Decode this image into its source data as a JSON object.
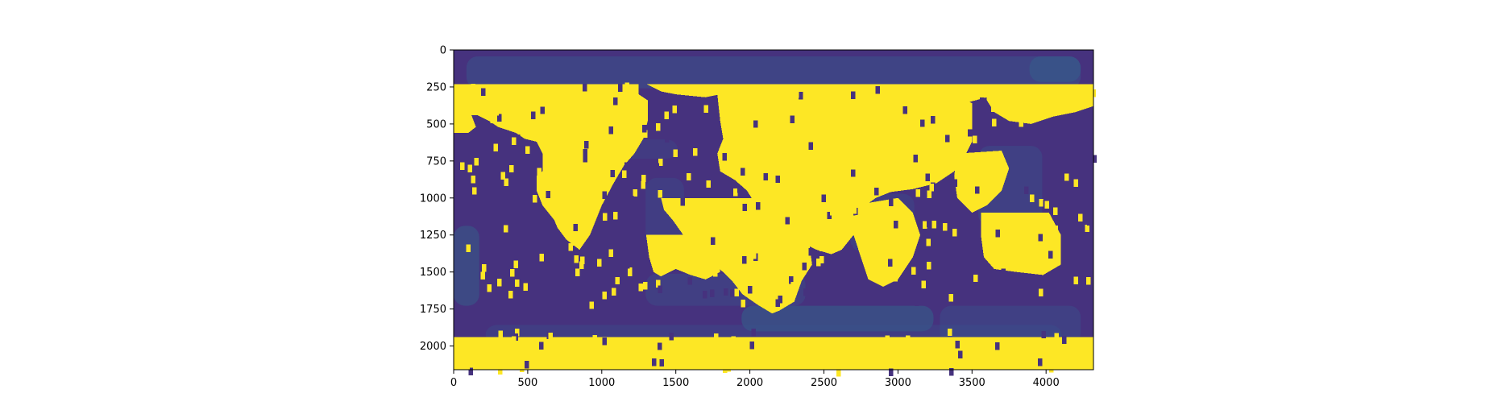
{
  "chart_data": {
    "type": "heatmap",
    "title": "",
    "xlabel": "",
    "ylabel": "",
    "xlim": [
      0,
      4320
    ],
    "ylim": [
      2160,
      0
    ],
    "x_ticks": [
      0,
      500,
      1000,
      1500,
      2000,
      2500,
      3000,
      3500,
      4000
    ],
    "y_ticks": [
      0,
      250,
      500,
      750,
      1000,
      1250,
      1500,
      1750,
      2000
    ],
    "colormap": "viridis",
    "background_values": "low (dark purple / teal ocean bathymetry-like texture)",
    "mask_value_color": "#fde725",
    "colors": {
      "low": "#46327e",
      "mid_low": "#3a538b",
      "mid": "#2f6c8e",
      "high": "#fde725"
    },
    "grid": false,
    "legend": "none"
  }
}
